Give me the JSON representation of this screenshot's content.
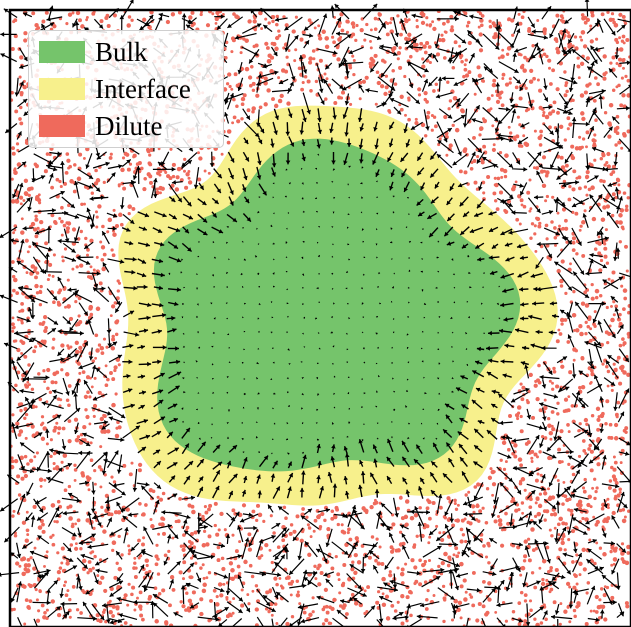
{
  "figure": {
    "background": "#ffffff",
    "frame_color": "#000000"
  },
  "colors": {
    "bulk": "#75c46b",
    "interface": "#f7f08c",
    "dilute": "#ef6a5c",
    "arrow": "#000000"
  },
  "legend": {
    "items": [
      {
        "label": "Bulk",
        "color": "#75c46b"
      },
      {
        "label": "Interface",
        "color": "#f7f08c"
      },
      {
        "label": "Dilute",
        "color": "#ef6a5c"
      }
    ]
  }
}
